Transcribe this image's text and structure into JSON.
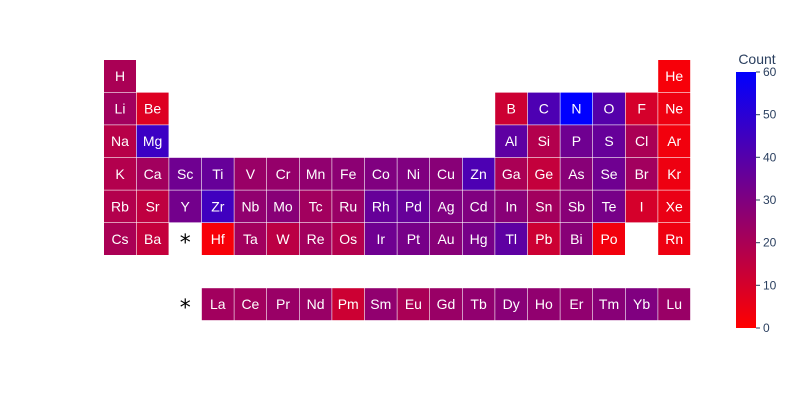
{
  "chart_data": {
    "type": "heatmap",
    "colorscale": {
      "min_color": "#ff0000",
      "max_color": "#0000ff"
    },
    "colorbar": {
      "title": "Count",
      "range": [
        0,
        60
      ],
      "ticks": [
        "0",
        "10",
        "20",
        "30",
        "40",
        "50",
        "60"
      ]
    },
    "markers": [
      {
        "symbol": "*",
        "row": 6,
        "col": 3
      },
      {
        "symbol": "*",
        "row": 8,
        "col": 3
      }
    ],
    "cells": [
      {
        "symbol": "H",
        "row": 1,
        "col": 1,
        "count": 20
      },
      {
        "symbol": "He",
        "row": 1,
        "col": 18,
        "count": 2
      },
      {
        "symbol": "Li",
        "row": 2,
        "col": 1,
        "count": 22
      },
      {
        "symbol": "Be",
        "row": 2,
        "col": 2,
        "count": 8
      },
      {
        "symbol": "B",
        "row": 2,
        "col": 13,
        "count": 12
      },
      {
        "symbol": "C",
        "row": 2,
        "col": 14,
        "count": 42
      },
      {
        "symbol": "N",
        "row": 2,
        "col": 15,
        "count": 60
      },
      {
        "symbol": "O",
        "row": 2,
        "col": 16,
        "count": 40
      },
      {
        "symbol": "F",
        "row": 2,
        "col": 17,
        "count": 10
      },
      {
        "symbol": "Ne",
        "row": 2,
        "col": 18,
        "count": 4
      },
      {
        "symbol": "Na",
        "row": 3,
        "col": 1,
        "count": 17
      },
      {
        "symbol": "Mg",
        "row": 3,
        "col": 2,
        "count": 46
      },
      {
        "symbol": "Al",
        "row": 3,
        "col": 13,
        "count": 38
      },
      {
        "symbol": "Si",
        "row": 3,
        "col": 14,
        "count": 18
      },
      {
        "symbol": "P",
        "row": 3,
        "col": 15,
        "count": 34
      },
      {
        "symbol": "S",
        "row": 3,
        "col": 16,
        "count": 36
      },
      {
        "symbol": "Cl",
        "row": 3,
        "col": 17,
        "count": 20
      },
      {
        "symbol": "Ar",
        "row": 3,
        "col": 18,
        "count": 3
      },
      {
        "symbol": "K",
        "row": 4,
        "col": 1,
        "count": 18
      },
      {
        "symbol": "Ca",
        "row": 4,
        "col": 2,
        "count": 22
      },
      {
        "symbol": "Sc",
        "row": 4,
        "col": 3,
        "count": 34
      },
      {
        "symbol": "Ti",
        "row": 4,
        "col": 4,
        "count": 36
      },
      {
        "symbol": "V",
        "row": 4,
        "col": 5,
        "count": 24
      },
      {
        "symbol": "Cr",
        "row": 4,
        "col": 6,
        "count": 25
      },
      {
        "symbol": "Mn",
        "row": 4,
        "col": 7,
        "count": 26
      },
      {
        "symbol": "Fe",
        "row": 4,
        "col": 8,
        "count": 27
      },
      {
        "symbol": "Co",
        "row": 4,
        "col": 9,
        "count": 30
      },
      {
        "symbol": "Ni",
        "row": 4,
        "col": 10,
        "count": 30
      },
      {
        "symbol": "Cu",
        "row": 4,
        "col": 11,
        "count": 28
      },
      {
        "symbol": "Zn",
        "row": 4,
        "col": 12,
        "count": 42
      },
      {
        "symbol": "Ga",
        "row": 4,
        "col": 13,
        "count": 20
      },
      {
        "symbol": "Ge",
        "row": 4,
        "col": 14,
        "count": 14
      },
      {
        "symbol": "As",
        "row": 4,
        "col": 15,
        "count": 28
      },
      {
        "symbol": "Se",
        "row": 4,
        "col": 16,
        "count": 34
      },
      {
        "symbol": "Br",
        "row": 4,
        "col": 17,
        "count": 22
      },
      {
        "symbol": "Kr",
        "row": 4,
        "col": 18,
        "count": 4
      },
      {
        "symbol": "Rb",
        "row": 5,
        "col": 1,
        "count": 18
      },
      {
        "symbol": "Sr",
        "row": 5,
        "col": 2,
        "count": 15
      },
      {
        "symbol": "Y",
        "row": 5,
        "col": 3,
        "count": 33
      },
      {
        "symbol": "Zr",
        "row": 5,
        "col": 4,
        "count": 45
      },
      {
        "symbol": "Nb",
        "row": 5,
        "col": 5,
        "count": 26
      },
      {
        "symbol": "Mo",
        "row": 5,
        "col": 6,
        "count": 28
      },
      {
        "symbol": "Tc",
        "row": 5,
        "col": 7,
        "count": 22
      },
      {
        "symbol": "Ru",
        "row": 5,
        "col": 8,
        "count": 24
      },
      {
        "symbol": "Rh",
        "row": 5,
        "col": 9,
        "count": 36
      },
      {
        "symbol": "Pd",
        "row": 5,
        "col": 10,
        "count": 36
      },
      {
        "symbol": "Ag",
        "row": 5,
        "col": 11,
        "count": 30
      },
      {
        "symbol": "Cd",
        "row": 5,
        "col": 12,
        "count": 30
      },
      {
        "symbol": "In",
        "row": 5,
        "col": 13,
        "count": 28
      },
      {
        "symbol": "Sn",
        "row": 5,
        "col": 14,
        "count": 22
      },
      {
        "symbol": "Sb",
        "row": 5,
        "col": 15,
        "count": 28
      },
      {
        "symbol": "Te",
        "row": 5,
        "col": 16,
        "count": 32
      },
      {
        "symbol": "I",
        "row": 5,
        "col": 17,
        "count": 10
      },
      {
        "symbol": "Xe",
        "row": 5,
        "col": 18,
        "count": 5
      },
      {
        "symbol": "Cs",
        "row": 6,
        "col": 1,
        "count": 20
      },
      {
        "symbol": "Ba",
        "row": 6,
        "col": 2,
        "count": 14
      },
      {
        "symbol": "Hf",
        "row": 6,
        "col": 4,
        "count": 2
      },
      {
        "symbol": "Ta",
        "row": 6,
        "col": 5,
        "count": 22
      },
      {
        "symbol": "W",
        "row": 6,
        "col": 6,
        "count": 16
      },
      {
        "symbol": "Re",
        "row": 6,
        "col": 7,
        "count": 22
      },
      {
        "symbol": "Os",
        "row": 6,
        "col": 8,
        "count": 18
      },
      {
        "symbol": "Ir",
        "row": 6,
        "col": 9,
        "count": 34
      },
      {
        "symbol": "Pt",
        "row": 6,
        "col": 10,
        "count": 32
      },
      {
        "symbol": "Au",
        "row": 6,
        "col": 11,
        "count": 28
      },
      {
        "symbol": "Hg",
        "row": 6,
        "col": 12,
        "count": 32
      },
      {
        "symbol": "Tl",
        "row": 6,
        "col": 13,
        "count": 38
      },
      {
        "symbol": "Pb",
        "row": 6,
        "col": 14,
        "count": 12
      },
      {
        "symbol": "Bi",
        "row": 6,
        "col": 15,
        "count": 28
      },
      {
        "symbol": "Po",
        "row": 6,
        "col": 16,
        "count": 3
      },
      {
        "symbol": "Rn",
        "row": 6,
        "col": 18,
        "count": 4
      },
      {
        "symbol": "La",
        "row": 8,
        "col": 4,
        "count": 22
      },
      {
        "symbol": "Ce",
        "row": 8,
        "col": 5,
        "count": 22
      },
      {
        "symbol": "Pr",
        "row": 8,
        "col": 6,
        "count": 24
      },
      {
        "symbol": "Nd",
        "row": 8,
        "col": 7,
        "count": 24
      },
      {
        "symbol": "Pm",
        "row": 8,
        "col": 8,
        "count": 12
      },
      {
        "symbol": "Sm",
        "row": 8,
        "col": 9,
        "count": 26
      },
      {
        "symbol": "Eu",
        "row": 8,
        "col": 10,
        "count": 20
      },
      {
        "symbol": "Gd",
        "row": 8,
        "col": 11,
        "count": 24
      },
      {
        "symbol": "Tb",
        "row": 8,
        "col": 12,
        "count": 26
      },
      {
        "symbol": "Dy",
        "row": 8,
        "col": 13,
        "count": 28
      },
      {
        "symbol": "Ho",
        "row": 8,
        "col": 14,
        "count": 26
      },
      {
        "symbol": "Er",
        "row": 8,
        "col": 15,
        "count": 26
      },
      {
        "symbol": "Tm",
        "row": 8,
        "col": 16,
        "count": 28
      },
      {
        "symbol": "Yb",
        "row": 8,
        "col": 17,
        "count": 30
      },
      {
        "symbol": "Lu",
        "row": 8,
        "col": 18,
        "count": 24
      }
    ]
  }
}
